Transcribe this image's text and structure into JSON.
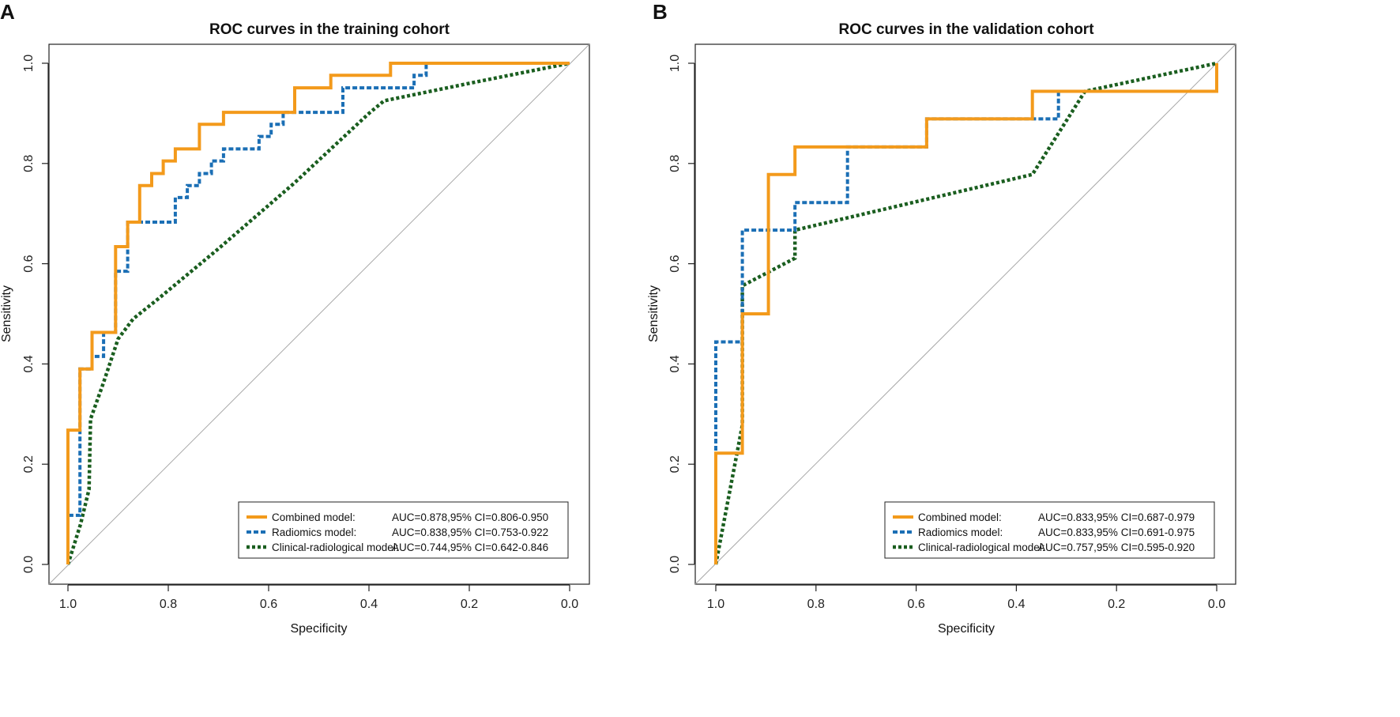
{
  "chart_data": [
    {
      "type": "line",
      "panel_label": "A",
      "title": "ROC curves in the training cohort",
      "xlabel": "Specificity",
      "ylabel": "Sensitivity",
      "xlim": [
        1.0,
        0.0
      ],
      "ylim": [
        0.0,
        1.0
      ],
      "xticks": [
        "1.0",
        "0.8",
        "0.6",
        "0.4",
        "0.2",
        "0.0"
      ],
      "yticks": [
        "0.0",
        "0.2",
        "0.4",
        "0.6",
        "0.8",
        "1.0"
      ],
      "legend_position": "bottom-right",
      "series": [
        {
          "name": "Combined model:",
          "auc_label": "AUC=0.878,95% CI=0.806-0.950",
          "color": "#f39a1b",
          "style": "solid",
          "points": [
            [
              1.0,
              0.0
            ],
            [
              1.0,
              0.268
            ],
            [
              0.976,
              0.268
            ],
            [
              0.976,
              0.39
            ],
            [
              0.952,
              0.39
            ],
            [
              0.952,
              0.463
            ],
            [
              0.905,
              0.463
            ],
            [
              0.905,
              0.634
            ],
            [
              0.881,
              0.634
            ],
            [
              0.881,
              0.683
            ],
            [
              0.857,
              0.683
            ],
            [
              0.857,
              0.756
            ],
            [
              0.833,
              0.756
            ],
            [
              0.833,
              0.78
            ],
            [
              0.81,
              0.78
            ],
            [
              0.81,
              0.805
            ],
            [
              0.786,
              0.805
            ],
            [
              0.786,
              0.829
            ],
            [
              0.738,
              0.829
            ],
            [
              0.738,
              0.878
            ],
            [
              0.69,
              0.878
            ],
            [
              0.69,
              0.902
            ],
            [
              0.548,
              0.902
            ],
            [
              0.548,
              0.951
            ],
            [
              0.476,
              0.951
            ],
            [
              0.476,
              0.976
            ],
            [
              0.357,
              0.976
            ],
            [
              0.357,
              1.0
            ],
            [
              0.0,
              1.0
            ]
          ]
        },
        {
          "name": "Radiomics model:",
          "auc_label": "AUC=0.838,95% CI=0.753-0.922",
          "color": "#1b6fb5",
          "style": "dashed",
          "points": [
            [
              1.0,
              0.0
            ],
            [
              1.0,
              0.098
            ],
            [
              0.976,
              0.098
            ],
            [
              0.976,
              0.39
            ],
            [
              0.952,
              0.39
            ],
            [
              0.952,
              0.415
            ],
            [
              0.929,
              0.415
            ],
            [
              0.929,
              0.463
            ],
            [
              0.905,
              0.463
            ],
            [
              0.905,
              0.585
            ],
            [
              0.881,
              0.585
            ],
            [
              0.881,
              0.683
            ],
            [
              0.786,
              0.683
            ],
            [
              0.786,
              0.732
            ],
            [
              0.762,
              0.732
            ],
            [
              0.762,
              0.756
            ],
            [
              0.738,
              0.756
            ],
            [
              0.738,
              0.78
            ],
            [
              0.714,
              0.78
            ],
            [
              0.714,
              0.805
            ],
            [
              0.69,
              0.805
            ],
            [
              0.69,
              0.829
            ],
            [
              0.619,
              0.829
            ],
            [
              0.619,
              0.854
            ],
            [
              0.595,
              0.854
            ],
            [
              0.595,
              0.878
            ],
            [
              0.571,
              0.878
            ],
            [
              0.571,
              0.902
            ],
            [
              0.452,
              0.902
            ],
            [
              0.452,
              0.951
            ],
            [
              0.31,
              0.951
            ],
            [
              0.31,
              0.976
            ],
            [
              0.286,
              0.976
            ],
            [
              0.286,
              1.0
            ],
            [
              0.0,
              1.0
            ]
          ]
        },
        {
          "name": "Clinical-radiological model:",
          "auc_label": "AUC=0.744,95% CI=0.642-0.846",
          "color": "#1a5e1f",
          "style": "dotted",
          "points": [
            [
              1.0,
              0.0
            ],
            [
              0.975,
              0.08
            ],
            [
              0.958,
              0.15
            ],
            [
              0.955,
              0.29
            ],
            [
              0.93,
              0.36
            ],
            [
              0.9,
              0.45
            ],
            [
              0.87,
              0.49
            ],
            [
              0.82,
              0.53
            ],
            [
              0.7,
              0.63
            ],
            [
              0.55,
              0.76
            ],
            [
              0.4,
              0.9
            ],
            [
              0.37,
              0.925
            ],
            [
              0.2,
              0.96
            ],
            [
              0.0,
              1.0
            ]
          ]
        }
      ]
    },
    {
      "type": "line",
      "panel_label": "B",
      "title": "ROC curves in the validation cohort",
      "xlabel": "Specificity",
      "ylabel": "Sensitivity",
      "xlim": [
        1.0,
        0.0
      ],
      "ylim": [
        0.0,
        1.0
      ],
      "xticks": [
        "1.0",
        "0.8",
        "0.6",
        "0.4",
        "0.2",
        "0.0"
      ],
      "yticks": [
        "0.0",
        "0.2",
        "0.4",
        "0.6",
        "0.8",
        "1.0"
      ],
      "legend_position": "bottom-right",
      "series": [
        {
          "name": "Combined model:",
          "auc_label": "AUC=0.833,95% CI=0.687-0.979",
          "color": "#f39a1b",
          "style": "solid",
          "points": [
            [
              1.0,
              0.0
            ],
            [
              1.0,
              0.222
            ],
            [
              0.947,
              0.222
            ],
            [
              0.947,
              0.5
            ],
            [
              0.895,
              0.5
            ],
            [
              0.895,
              0.778
            ],
            [
              0.842,
              0.778
            ],
            [
              0.842,
              0.833
            ],
            [
              0.579,
              0.833
            ],
            [
              0.579,
              0.889
            ],
            [
              0.368,
              0.889
            ],
            [
              0.368,
              0.944
            ],
            [
              0.0,
              0.944
            ],
            [
              0.0,
              1.0
            ]
          ]
        },
        {
          "name": "Radiomics model:",
          "auc_label": "AUC=0.833,95% CI=0.691-0.975",
          "color": "#1b6fb5",
          "style": "dashed",
          "points": [
            [
              1.0,
              0.0
            ],
            [
              1.0,
              0.444
            ],
            [
              0.947,
              0.444
            ],
            [
              0.947,
              0.667
            ],
            [
              0.842,
              0.667
            ],
            [
              0.842,
              0.722
            ],
            [
              0.737,
              0.722
            ],
            [
              0.737,
              0.833
            ],
            [
              0.579,
              0.833
            ],
            [
              0.579,
              0.889
            ],
            [
              0.316,
              0.889
            ],
            [
              0.316,
              0.944
            ],
            [
              0.0,
              0.944
            ],
            [
              0.0,
              1.0
            ]
          ]
        },
        {
          "name": "Clinical-radiological model:",
          "auc_label": "AUC=0.757,95% CI=0.595-0.920",
          "color": "#1a5e1f",
          "style": "dotted",
          "points": [
            [
              1.0,
              0.0
            ],
            [
              0.947,
              0.278
            ],
            [
              0.947,
              0.556
            ],
            [
              0.842,
              0.611
            ],
            [
              0.842,
              0.667
            ],
            [
              0.368,
              0.778
            ],
            [
              0.263,
              0.944
            ],
            [
              0.0,
              1.0
            ]
          ]
        }
      ]
    }
  ]
}
